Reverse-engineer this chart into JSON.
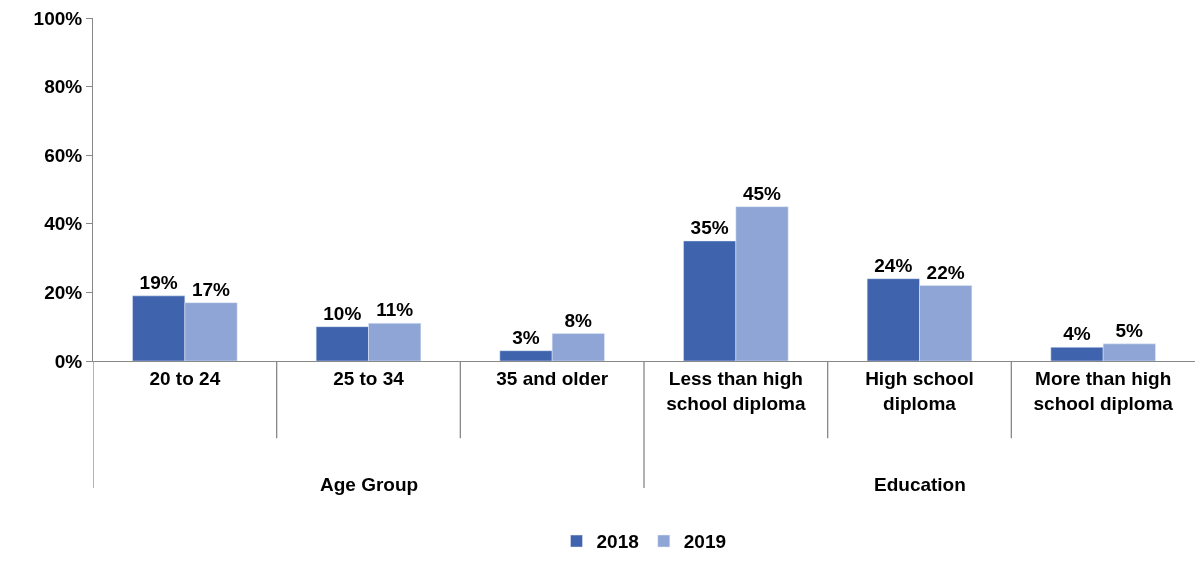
{
  "chart_data": {
    "type": "bar",
    "categories": [
      "20 to 24",
      "25 to 34",
      "35 and older",
      "Less than high school diploma",
      "High school diploma",
      "More than high school diploma"
    ],
    "series": [
      {
        "name": "2018",
        "color": "#3f63ad",
        "values": [
          19,
          10,
          3,
          35,
          24,
          4
        ],
        "value_labels": [
          "19%",
          "10%",
          "3%",
          "35%",
          "24%",
          "4%"
        ]
      },
      {
        "name": "2019",
        "color": "#8fa5d6",
        "values": [
          17,
          11,
          8,
          45,
          22,
          5
        ],
        "value_labels": [
          "17%",
          "11%",
          "8%",
          "45%",
          "22%",
          "5%"
        ]
      }
    ],
    "annotations": [
      "Age Group",
      "Education"
    ],
    "ylim": [
      0,
      100
    ],
    "yticks": [
      {
        "value": 0,
        "label": "0%"
      },
      {
        "value": 20,
        "label": "20%"
      },
      {
        "value": 40,
        "label": "40%"
      },
      {
        "value": 60,
        "label": "60%"
      },
      {
        "value": 80,
        "label": "80%"
      },
      {
        "value": 100,
        "label": "100%"
      }
    ],
    "legend": "bottom"
  }
}
